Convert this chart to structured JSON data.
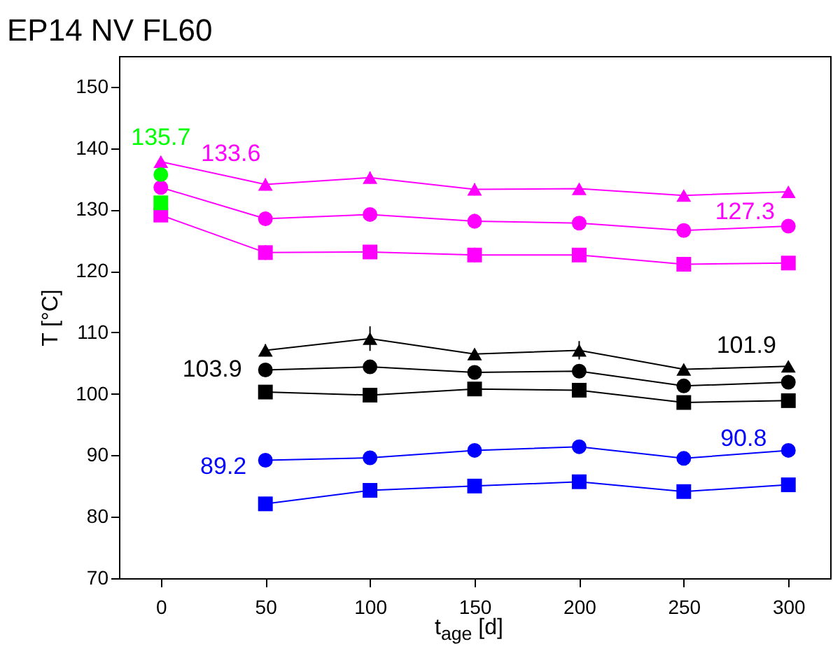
{
  "chart_data": {
    "type": "line",
    "title": "EP14 NV FL60",
    "xlabel": "t$_{age}$ [d]",
    "ylabel": "T [°C]",
    "x": [
      0,
      50,
      100,
      150,
      200,
      250,
      300
    ],
    "xlim": [
      -20,
      320
    ],
    "xticks": [
      0,
      50,
      100,
      150,
      200,
      250,
      300
    ],
    "ylim": [
      70,
      155
    ],
    "yticks": [
      70,
      80,
      90,
      100,
      110,
      120,
      130,
      140,
      150
    ],
    "grid": false,
    "legend": false,
    "line_style": "solid",
    "series": [
      {
        "color": "#ff00ff",
        "marker": "triangle",
        "values": [
          137.8,
          134.1,
          135.2,
          133.3,
          133.4,
          132.3,
          132.9
        ],
        "errors": [
          null,
          1,
          1,
          1,
          null,
          null,
          null
        ]
      },
      {
        "color": "#ff00ff",
        "marker": "circle",
        "values": [
          133.6,
          128.5,
          129.2,
          128.1,
          127.8,
          126.6,
          127.3
        ],
        "errors": [
          null,
          1.2,
          null,
          1.2,
          null,
          null,
          null
        ]
      },
      {
        "color": "#ff00ff",
        "marker": "square",
        "values": [
          129.1,
          123.0,
          123.1,
          122.6,
          122.6,
          121.1,
          121.3
        ],
        "errors": [
          null,
          1.2,
          null,
          1.2,
          null,
          null,
          null
        ]
      },
      {
        "type": "scatter",
        "color": "#00ff00",
        "marker": "circle",
        "values": [
          135.7,
          null,
          null,
          null,
          null,
          null,
          null
        ]
      },
      {
        "type": "scatter",
        "color": "#00ff00",
        "marker": "square",
        "values": [
          131.1,
          null,
          null,
          null,
          null,
          null,
          null
        ]
      },
      {
        "color": "#000000",
        "marker": "triangle",
        "values": [
          null,
          107.1,
          109.0,
          106.5,
          107.1,
          104.0,
          104.5
        ],
        "errors": [
          null,
          1,
          2,
          null,
          1.5,
          null,
          null
        ]
      },
      {
        "color": "#000000",
        "marker": "circle",
        "values": [
          null,
          103.9,
          104.4,
          103.5,
          103.7,
          101.3,
          101.9
        ],
        "errors": [
          null,
          null,
          null,
          null,
          1,
          null,
          null
        ]
      },
      {
        "color": "#000000",
        "marker": "square",
        "values": [
          null,
          100.3,
          99.8,
          100.8,
          100.6,
          98.6,
          98.9
        ]
      },
      {
        "color": "#0000ff",
        "marker": "circle",
        "values": [
          null,
          89.2,
          89.6,
          90.8,
          91.4,
          89.5,
          90.8
        ]
      },
      {
        "color": "#0000ff",
        "marker": "square",
        "values": [
          null,
          82.1,
          84.3,
          85.0,
          85.7,
          84.1,
          85.2
        ]
      }
    ],
    "annotations": [
      {
        "text": "135.7",
        "x": 0,
        "y": 135.7
      },
      {
        "text": "133.6",
        "x": 0,
        "y": 133.6
      },
      {
        "text": "127.3",
        "x": 300,
        "y": 127.3
      },
      {
        "text": "103.9",
        "x": 50,
        "y": 103.9
      },
      {
        "text": "101.9",
        "x": 300,
        "y": 101.9
      },
      {
        "text": "89.2",
        "x": 50,
        "y": 89.2
      },
      {
        "text": "90.8",
        "x": 300,
        "y": 90.8
      }
    ]
  }
}
